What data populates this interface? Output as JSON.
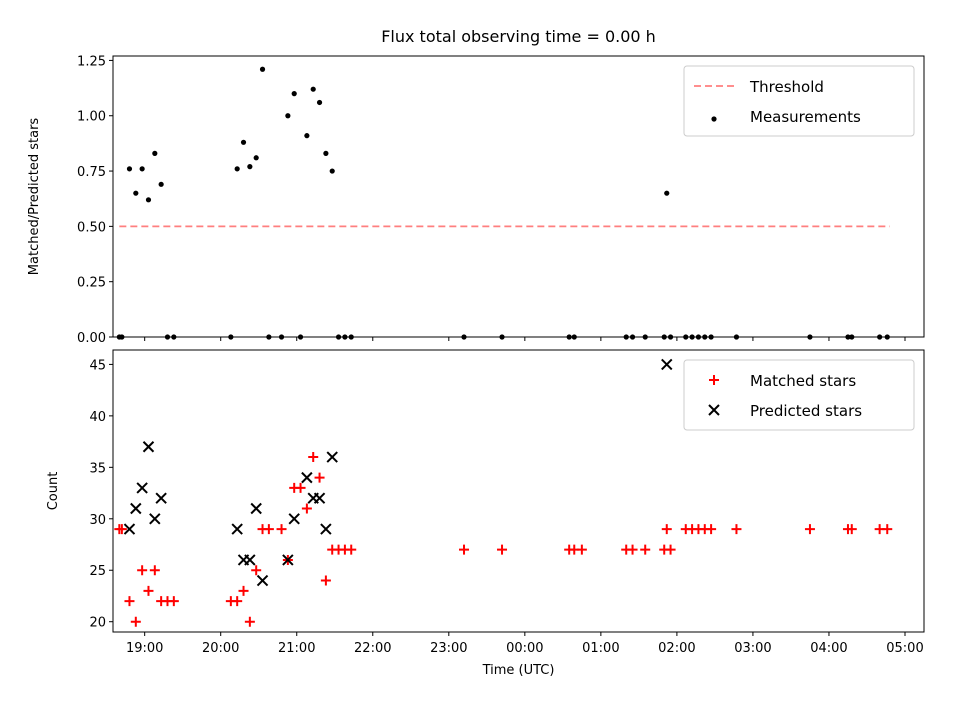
{
  "chart_data": [
    {
      "type": "scatter",
      "title": "Flux total observing time = 0.00 h",
      "ylabel": "Matched/Predicted stars",
      "xlabel": "",
      "xlim": [
        "18:35",
        "05:15"
      ],
      "ylim": [
        0,
        1.27
      ],
      "yticks": [
        "0.00",
        "0.25",
        "0.50",
        "0.75",
        "1.00",
        "1.25"
      ],
      "legend_position": "top-right",
      "threshold": {
        "name": "Threshold",
        "y": 0.5,
        "x": [
          "18:40",
          "04:48"
        ],
        "color": "#ff7f7f"
      },
      "series": [
        {
          "name": "Measurements",
          "color": "#000000",
          "points": [
            [
              "18:40",
              0
            ],
            [
              "18:42",
              0
            ],
            [
              "18:48",
              0.76
            ],
            [
              "18:53",
              0.65
            ],
            [
              "18:58",
              0.76
            ],
            [
              "19:03",
              0.62
            ],
            [
              "19:08",
              0.83
            ],
            [
              "19:13",
              0.69
            ],
            [
              "19:18",
              0
            ],
            [
              "19:23",
              0
            ],
            [
              "20:08",
              0
            ],
            [
              "20:13",
              0.76
            ],
            [
              "20:18",
              0.88
            ],
            [
              "20:23",
              0.77
            ],
            [
              "20:28",
              0.81
            ],
            [
              "20:33",
              1.21
            ],
            [
              "20:38",
              0
            ],
            [
              "20:48",
              0
            ],
            [
              "20:53",
              1.0
            ],
            [
              "20:58",
              1.1
            ],
            [
              "21:03",
              0
            ],
            [
              "21:08",
              0.91
            ],
            [
              "21:13",
              1.12
            ],
            [
              "21:18",
              1.06
            ],
            [
              "21:23",
              0.83
            ],
            [
              "21:28",
              0.75
            ],
            [
              "21:33",
              0
            ],
            [
              "21:38",
              0
            ],
            [
              "21:43",
              0
            ],
            [
              "23:12",
              0
            ],
            [
              "23:42",
              0
            ],
            [
              "00:35",
              0
            ],
            [
              "00:39",
              0
            ],
            [
              "01:20",
              0
            ],
            [
              "01:25",
              0
            ],
            [
              "01:35",
              0
            ],
            [
              "01:50",
              0
            ],
            [
              "01:55",
              0
            ],
            [
              "01:52",
              0.65
            ],
            [
              "02:07",
              0
            ],
            [
              "02:12",
              0
            ],
            [
              "02:17",
              0
            ],
            [
              "02:22",
              0
            ],
            [
              "02:27",
              0
            ],
            [
              "02:47",
              0
            ],
            [
              "03:45",
              0
            ],
            [
              "04:15",
              0
            ],
            [
              "04:18",
              0
            ],
            [
              "04:40",
              0
            ],
            [
              "04:46",
              0
            ]
          ]
        }
      ]
    },
    {
      "type": "scatter",
      "title": "",
      "ylabel": "Count",
      "xlabel": "Time (UTC)",
      "xlim": [
        "18:35",
        "05:15"
      ],
      "ylim": [
        19,
        46.4
      ],
      "yticks": [
        "20",
        "25",
        "30",
        "35",
        "40",
        "45"
      ],
      "xticks": [
        "19:00",
        "20:00",
        "21:00",
        "22:00",
        "23:00",
        "00:00",
        "01:00",
        "02:00",
        "03:00",
        "04:00",
        "05:00"
      ],
      "legend_position": "top-right",
      "series": [
        {
          "name": "Matched stars",
          "marker": "plus",
          "color": "#ff0000",
          "points": [
            [
              "18:40",
              29
            ],
            [
              "18:42",
              29
            ],
            [
              "18:48",
              22
            ],
            [
              "18:53",
              20
            ],
            [
              "18:58",
              25
            ],
            [
              "19:03",
              23
            ],
            [
              "19:08",
              25
            ],
            [
              "19:13",
              22
            ],
            [
              "19:18",
              22
            ],
            [
              "19:23",
              22
            ],
            [
              "20:08",
              22
            ],
            [
              "20:13",
              22
            ],
            [
              "20:18",
              23
            ],
            [
              "20:23",
              20
            ],
            [
              "20:28",
              25
            ],
            [
              "20:33",
              29
            ],
            [
              "20:38",
              29
            ],
            [
              "20:48",
              29
            ],
            [
              "20:53",
              26
            ],
            [
              "20:58",
              33
            ],
            [
              "21:03",
              33
            ],
            [
              "21:08",
              31
            ],
            [
              "21:13",
              36
            ],
            [
              "21:18",
              34
            ],
            [
              "21:23",
              24
            ],
            [
              "21:28",
              27
            ],
            [
              "21:33",
              27
            ],
            [
              "21:38",
              27
            ],
            [
              "21:43",
              27
            ],
            [
              "23:12",
              27
            ],
            [
              "23:42",
              27
            ],
            [
              "00:35",
              27
            ],
            [
              "00:39",
              27
            ],
            [
              "00:45",
              27
            ],
            [
              "01:20",
              27
            ],
            [
              "01:25",
              27
            ],
            [
              "01:35",
              27
            ],
            [
              "01:50",
              27
            ],
            [
              "01:55",
              27
            ],
            [
              "01:52",
              29
            ],
            [
              "02:07",
              29
            ],
            [
              "02:12",
              29
            ],
            [
              "02:17",
              29
            ],
            [
              "02:22",
              29
            ],
            [
              "02:27",
              29
            ],
            [
              "02:47",
              29
            ],
            [
              "03:45",
              29
            ],
            [
              "04:15",
              29
            ],
            [
              "04:18",
              29
            ],
            [
              "04:40",
              29
            ],
            [
              "04:46",
              29
            ]
          ]
        },
        {
          "name": "Predicted stars",
          "marker": "x",
          "color": "#000000",
          "points": [
            [
              "18:48",
              29
            ],
            [
              "18:53",
              31
            ],
            [
              "18:58",
              33
            ],
            [
              "19:03",
              37
            ],
            [
              "19:08",
              30
            ],
            [
              "19:13",
              32
            ],
            [
              "20:13",
              29
            ],
            [
              "20:18",
              26
            ],
            [
              "20:23",
              26
            ],
            [
              "20:28",
              31
            ],
            [
              "20:33",
              24
            ],
            [
              "20:53",
              26
            ],
            [
              "20:58",
              30
            ],
            [
              "21:08",
              34
            ],
            [
              "21:13",
              32
            ],
            [
              "21:18",
              32
            ],
            [
              "21:23",
              29
            ],
            [
              "21:28",
              36
            ],
            [
              "01:52",
              45
            ]
          ]
        }
      ]
    }
  ]
}
